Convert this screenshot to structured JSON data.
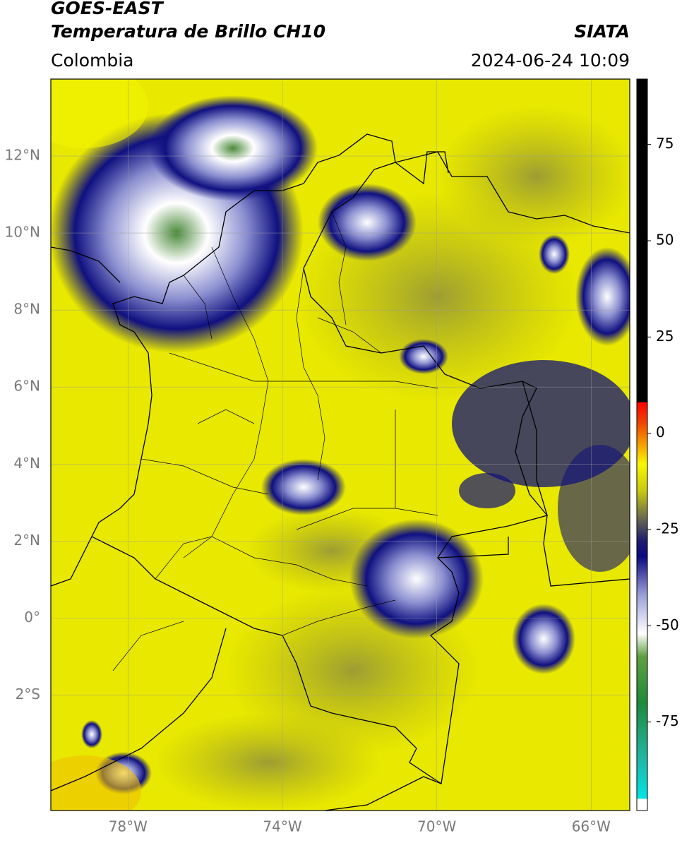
{
  "header": {
    "title": "GOES-EAST",
    "subtitle": "Temperatura de Brillo CH10",
    "source": "SIATA",
    "region": "Colombia",
    "datetime": "2024-06-24 10:09"
  },
  "map": {
    "xlim": [
      -80,
      -65
    ],
    "ylim": [
      -5,
      14
    ],
    "xticks": [
      {
        "value": -78,
        "label": "78°W"
      },
      {
        "value": -74,
        "label": "74°W"
      },
      {
        "value": -70,
        "label": "70°W"
      },
      {
        "value": -66,
        "label": "66°W"
      }
    ],
    "yticks": [
      {
        "value": 12,
        "label": "12°N"
      },
      {
        "value": 10,
        "label": "10°N"
      },
      {
        "value": 8,
        "label": "8°N"
      },
      {
        "value": 6,
        "label": "6°N"
      },
      {
        "value": 4,
        "label": "4°N"
      },
      {
        "value": 2,
        "label": "2°N"
      },
      {
        "value": 0,
        "label": "0°"
      },
      {
        "value": -2,
        "label": "2°S"
      }
    ],
    "grid": true,
    "background_color": "#e8e800"
  },
  "colorbar": {
    "lim": [
      -98,
      92
    ],
    "ticks": [
      75,
      50,
      25,
      0,
      -25,
      -50,
      -75
    ],
    "stops": [
      {
        "value": -98,
        "color": "#ffffff"
      },
      {
        "value": -95,
        "color": "#ffffff"
      },
      {
        "value": -94.9,
        "color": "#00e5e5"
      },
      {
        "value": -85,
        "color": "#20b8a8"
      },
      {
        "value": -70,
        "color": "#1f8a3a"
      },
      {
        "value": -58,
        "color": "#5fa040"
      },
      {
        "value": -52,
        "color": "#ffffff"
      },
      {
        "value": -42,
        "color": "#9aa0d8"
      },
      {
        "value": -32,
        "color": "#0a0a80"
      },
      {
        "value": -28,
        "color": "#1c1c70"
      },
      {
        "value": -22,
        "color": "#6a6a50"
      },
      {
        "value": -15,
        "color": "#c8c810"
      },
      {
        "value": -8,
        "color": "#f8f800"
      },
      {
        "value": -3,
        "color": "#f8a000"
      },
      {
        "value": 3,
        "color": "#f04000"
      },
      {
        "value": 8,
        "color": "#ff0000"
      },
      {
        "value": 8.1,
        "color": "#000000"
      },
      {
        "value": 92,
        "color": "#000000"
      }
    ]
  }
}
